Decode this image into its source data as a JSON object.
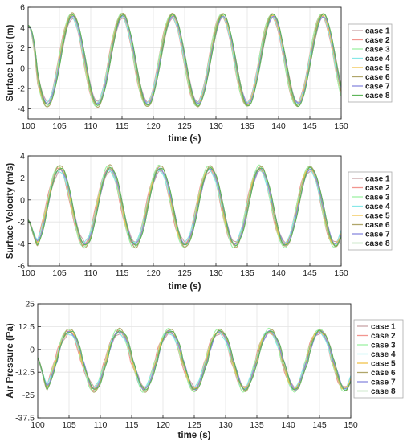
{
  "chart_data": [
    {
      "type": "line",
      "ylabel": "Surface Level (m)",
      "xlabel": "time (s)",
      "xlim": [
        100,
        150
      ],
      "ylim": [
        -5,
        6
      ],
      "xticks": [
        "100",
        "105",
        "110",
        "115",
        "120",
        "125",
        "130",
        "135",
        "140",
        "145",
        "150"
      ],
      "yticks": [
        "-4",
        "-2",
        "0",
        "2",
        "4",
        "6"
      ],
      "grid": true,
      "legend": "right",
      "wave": {
        "period": 8.0,
        "phase_time": 107.0,
        "mean": 0.8,
        "amplitude": 4.4
      },
      "series": [
        {
          "name": "case 1",
          "color": "#c9a3a8"
        },
        {
          "name": "case 2",
          "color": "#f2958f"
        },
        {
          "name": "case 3",
          "color": "#9ff0a4"
        },
        {
          "name": "case 4",
          "color": "#87e8e8"
        },
        {
          "name": "case 5",
          "color": "#f0c24c"
        },
        {
          "name": "case 6",
          "color": "#b0a56a"
        },
        {
          "name": "case 7",
          "color": "#8a8adf"
        },
        {
          "name": "case 8",
          "color": "#5fb55a"
        }
      ]
    },
    {
      "type": "line",
      "ylabel": "Surface Velocity (m/s)",
      "xlabel": "time (s)",
      "xlim": [
        100,
        150
      ],
      "ylim": [
        -6,
        4
      ],
      "xticks": [
        "100",
        "105",
        "110",
        "115",
        "120",
        "125",
        "130",
        "135",
        "140",
        "145",
        "150"
      ],
      "yticks": [
        "-6",
        "-4",
        "-2",
        "0",
        "2",
        "4"
      ],
      "grid": true,
      "legend": "right",
      "wave": {
        "period": 8.0,
        "phase_time": 105.0,
        "mean": -0.6,
        "amplitude": 3.5
      },
      "series": [
        {
          "name": "case 1",
          "color": "#c9a3a8"
        },
        {
          "name": "case 2",
          "color": "#f2958f"
        },
        {
          "name": "case 3",
          "color": "#9ff0a4"
        },
        {
          "name": "case 4",
          "color": "#87e8e8"
        },
        {
          "name": "case 5",
          "color": "#f0c24c"
        },
        {
          "name": "case 6",
          "color": "#b0a56a"
        },
        {
          "name": "case 7",
          "color": "#8a8adf"
        },
        {
          "name": "case 8",
          "color": "#5fb55a"
        }
      ]
    },
    {
      "type": "line",
      "ylabel": "Air Pressure (Pa)",
      "xlabel": "time (s)",
      "xlim": [
        100,
        150
      ],
      "ylim": [
        -37.5,
        25
      ],
      "xticks": [
        "100",
        "105",
        "110",
        "115",
        "120",
        "125",
        "130",
        "135",
        "140",
        "145",
        "150"
      ],
      "yticks": [
        "-37.5",
        "-25",
        "-12.5",
        "0",
        "12.5",
        "25"
      ],
      "grid": true,
      "legend": "right",
      "wave": {
        "period": 8.0,
        "phase_time": 105.0,
        "mean": -6.0,
        "amplitude": 16.0
      },
      "series": [
        {
          "name": "case 1",
          "color": "#c9a3a8"
        },
        {
          "name": "case 2",
          "color": "#f2958f"
        },
        {
          "name": "case 3",
          "color": "#9ff0a4"
        },
        {
          "name": "case 4",
          "color": "#87e8e8"
        },
        {
          "name": "case 5",
          "color": "#f0c24c"
        },
        {
          "name": "case 6",
          "color": "#b0a56a"
        },
        {
          "name": "case 7",
          "color": "#8a8adf"
        },
        {
          "name": "case 8",
          "color": "#5fb55a"
        }
      ]
    }
  ]
}
